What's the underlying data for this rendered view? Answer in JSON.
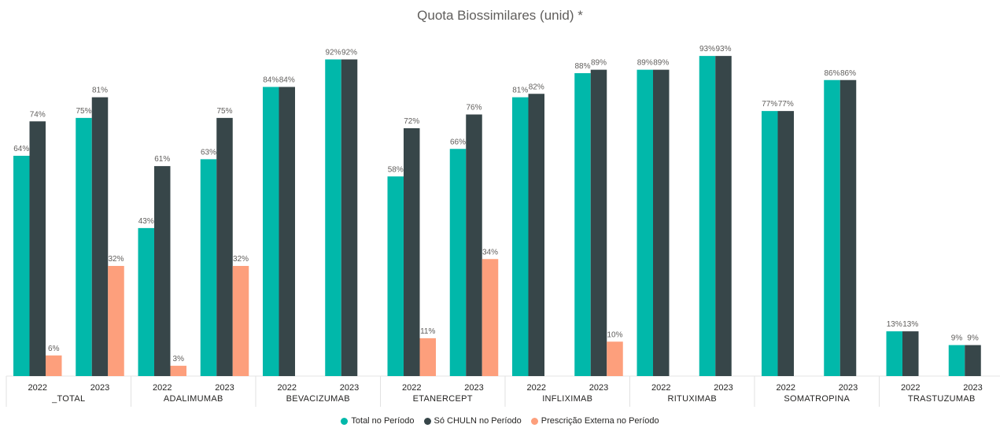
{
  "chart_data": {
    "type": "bar",
    "title": "Quota Biossimilares (unid) *",
    "ylim": [
      0,
      100
    ],
    "groups": [
      {
        "category": "_TOTAL",
        "years": [
          "2022",
          "2023"
        ]
      },
      {
        "category": "ADALIMUMAB",
        "years": [
          "2022",
          "2023"
        ]
      },
      {
        "category": "BEVACIZUMAB",
        "years": [
          "2022",
          "2023"
        ]
      },
      {
        "category": "ETANERCEPT",
        "years": [
          "2022",
          "2023"
        ]
      },
      {
        "category": "INFLIXIMAB",
        "years": [
          "2022",
          "2023"
        ]
      },
      {
        "category": "RITUXIMAB",
        "years": [
          "2022",
          "2023"
        ]
      },
      {
        "category": "SOMATROPINA",
        "years": [
          "2022",
          "2023"
        ]
      },
      {
        "category": "TRASTUZUMAB",
        "years": [
          "2022",
          "2023"
        ]
      }
    ],
    "series": [
      {
        "name": "Total no Período",
        "color": "#01B8AA",
        "values": [
          [
            64,
            75
          ],
          [
            43,
            63
          ],
          [
            84,
            92
          ],
          [
            58,
            66
          ],
          [
            81,
            88
          ],
          [
            89,
            93
          ],
          [
            77,
            86
          ],
          [
            13,
            9
          ]
        ]
      },
      {
        "name": "Só CHULN no Período",
        "color": "#374649",
        "values": [
          [
            74,
            81
          ],
          [
            61,
            75
          ],
          [
            84,
            92
          ],
          [
            72,
            76
          ],
          [
            82,
            89
          ],
          [
            89,
            93
          ],
          [
            77,
            86
          ],
          [
            13,
            9
          ]
        ]
      },
      {
        "name": "Prescrição Externa no Período",
        "color": "#FD9F7C",
        "values": [
          [
            6,
            32
          ],
          [
            3,
            32
          ],
          [
            null,
            null
          ],
          [
            11,
            34
          ],
          [
            null,
            10
          ],
          [
            null,
            null
          ],
          [
            null,
            null
          ],
          [
            null,
            null
          ]
        ]
      }
    ],
    "value_suffix": "%",
    "legend_position": "bottom-center",
    "grid": false
  }
}
